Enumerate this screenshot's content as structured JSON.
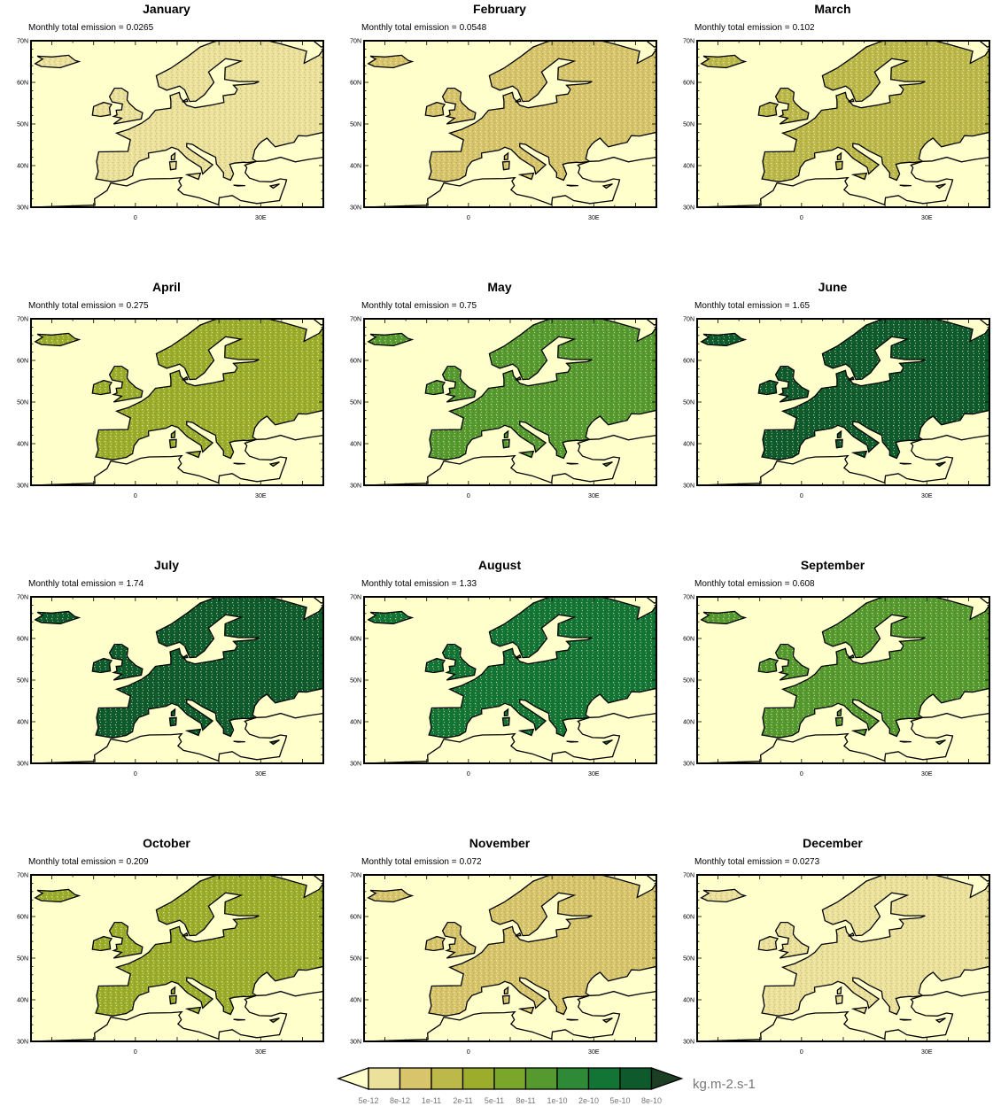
{
  "subtitle_prefix": "Monthly total emission =",
  "panels": [
    {
      "month": "January",
      "total": "0.0265",
      "intensity": 0.04
    },
    {
      "month": "February",
      "total": "0.0548",
      "intensity": 0.1
    },
    {
      "month": "March",
      "total": "0.102",
      "intensity": 0.17
    },
    {
      "month": "April",
      "total": "0.275",
      "intensity": 0.32
    },
    {
      "month": "May",
      "total": "0.75",
      "intensity": 0.6
    },
    {
      "month": "June",
      "total": "1.65",
      "intensity": 0.88
    },
    {
      "month": "July",
      "total": "1.74",
      "intensity": 0.92
    },
    {
      "month": "August",
      "total": "1.33",
      "intensity": 0.8
    },
    {
      "month": "September",
      "total": "0.608",
      "intensity": 0.55
    },
    {
      "month": "October",
      "total": "0.209",
      "intensity": 0.28
    },
    {
      "month": "November",
      "total": "0.072",
      "intensity": 0.13
    },
    {
      "month": "December",
      "total": "0.0273",
      "intensity": 0.04
    }
  ],
  "map": {
    "lat_labels": [
      "70N",
      "60N",
      "50N",
      "40N",
      "30N"
    ],
    "lon_labels": [
      "0",
      "30E"
    ],
    "lat_range": [
      30,
      70
    ],
    "lon_range": [
      -25,
      45
    ],
    "ocean_color": "#ffffcc",
    "coast_color": "#000000"
  },
  "colorbar": {
    "ticks": [
      "5e-12",
      "8e-12",
      "1e-11",
      "2e-11",
      "5e-11",
      "8e-11",
      "1e-10",
      "2e-10",
      "5e-10",
      "8e-10"
    ],
    "colors": [
      "#ffffcc",
      "#ece19b",
      "#d8c46a",
      "#bcb84a",
      "#9cad2b",
      "#7aa62a",
      "#56992f",
      "#2e8a36",
      "#137535",
      "#0e5a2c",
      "#1c3f24"
    ],
    "units": "kg.m-2.s-1"
  }
}
